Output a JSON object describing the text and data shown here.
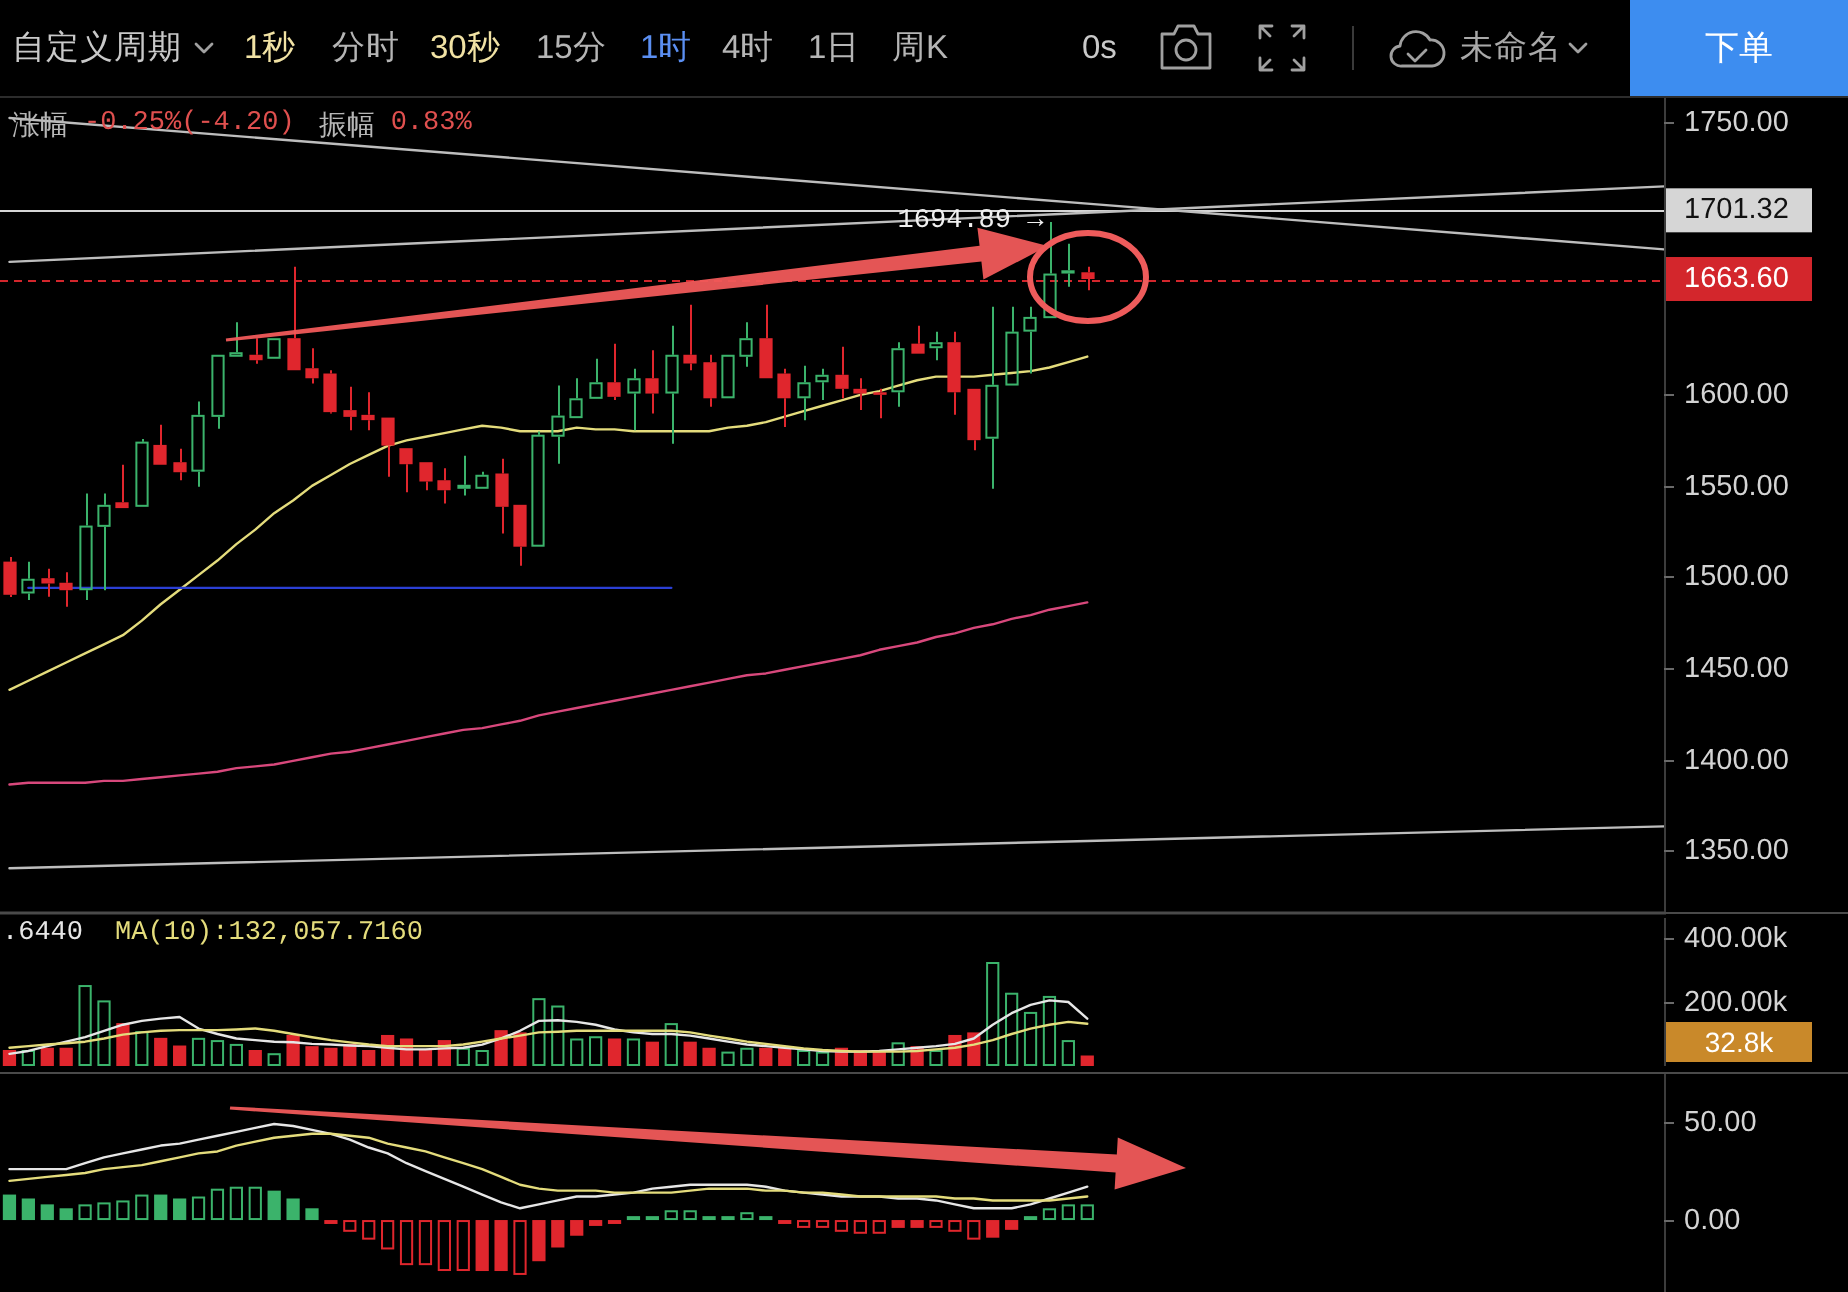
{
  "chart_data": [
    {
      "type": "other",
      "annotations": [
        "自定义周期",
        "1秒",
        "分时",
        "30秒",
        "15分",
        "1时",
        "4时",
        "1日",
        "周K",
        "0s",
        "未命名",
        "下单"
      ]
    },
    {
      "type": "candlestick",
      "categories": [
        null,
        null,
        null,
        null,
        null,
        null,
        null,
        null,
        null,
        null,
        null,
        null,
        null,
        null,
        null,
        null,
        null,
        null,
        null,
        null,
        null,
        null,
        null,
        null,
        null,
        null,
        null,
        null,
        null,
        null,
        null,
        null,
        null,
        null,
        null,
        null,
        null,
        null,
        null,
        null,
        null,
        null,
        null,
        null,
        null,
        null,
        null,
        null,
        null,
        null,
        null,
        null,
        null,
        null,
        null,
        null,
        null,
        null
      ],
      "ohlc": [
        [
          1508.4,
          1511,
          1489,
          1490.2
        ],
        [
          1490.9,
          1508.4,
          1487.3,
          1499
        ],
        [
          1499.3,
          1504.5,
          1489.1,
          1496.4
        ],
        [
          1496.8,
          1502.6,
          1483.6,
          1492.7
        ],
        [
          1492.7,
          1545.8,
          1487.3,
          1528.2
        ],
        [
          1527.5,
          1545.8,
          1492.7,
          1539.6
        ],
        [
          1541,
          1561.6,
          1537.8,
          1537.8
        ],
        [
          1538.5,
          1575.8,
          1538.5,
          1574.3
        ],
        [
          1572.5,
          1583.5,
          1561.6,
          1561.6
        ],
        [
          1563,
          1570.4,
          1553.1,
          1557.5
        ],
        [
          1557.8,
          1596.3,
          1549.5,
          1589
        ],
        [
          1587.9,
          1622,
          1581.4,
          1622
        ],
        [
          1620.9,
          1639.9,
          1620.9,
          1623.4
        ],
        [
          1622,
          1631.1,
          1617.1,
          1619
        ],
        [
          1619.8,
          1631.1,
          1619.8,
          1631.1
        ],
        [
          1631.1,
          1670.3,
          1613.5,
          1613.5
        ],
        [
          1614.6,
          1625.6,
          1606.2,
          1609.1
        ],
        [
          1611.7,
          1613.5,
          1589.7,
          1590.5
        ],
        [
          1591.6,
          1604.4,
          1580.6,
          1587.9
        ],
        [
          1589,
          1601.4,
          1580.6,
          1586.1
        ],
        [
          1587.5,
          1587.5,
          1555,
          1572.1
        ],
        [
          1570.7,
          1570.7,
          1546.5,
          1561.9
        ],
        [
          1563,
          1563,
          1547.6,
          1552.4
        ],
        [
          1553.1,
          1559.7,
          1540.3,
          1547.6
        ],
        [
          1548.4,
          1566.6,
          1544.7,
          1550.6
        ],
        [
          1548.4,
          1557.8,
          1548.4,
          1556.1
        ],
        [
          1556.8,
          1564.9,
          1523.8,
          1538.5
        ],
        [
          1539.6,
          1539.6,
          1506.2,
          1516.6
        ],
        [
          1516.6,
          1579.8,
          1516.6,
          1578.1
        ],
        [
          1577,
          1605.1,
          1562.2,
          1588.6
        ],
        [
          1587.2,
          1609.1,
          1587.2,
          1598.1
        ],
        [
          1597.8,
          1619.8,
          1597.8,
          1606.9
        ],
        [
          1606.9,
          1628.1,
          1597.1,
          1598.9
        ],
        [
          1600.7,
          1614.3,
          1580.6,
          1609.1
        ],
        [
          1609.1,
          1624.5,
          1589.7,
          1600.7
        ],
        [
          1600.7,
          1638,
          1573.2,
          1622
        ],
        [
          1622,
          1649.4,
          1613.5,
          1617.2
        ],
        [
          1617.9,
          1622,
          1593.4,
          1598.1
        ],
        [
          1598.1,
          1622,
          1598.1,
          1622
        ],
        [
          1620.9,
          1639.9,
          1615.4,
          1631.1
        ],
        [
          1631.1,
          1649.4,
          1609.1,
          1609.1
        ],
        [
          1611.7,
          1614.3,
          1582.4,
          1598.1
        ],
        [
          1598.1,
          1616,
          1586.1,
          1606.9
        ],
        [
          1606.9,
          1614.3,
          1597.1,
          1611
        ],
        [
          1611,
          1626.4,
          1598.1,
          1603.3
        ],
        [
          1603.3,
          1609.1,
          1591.6,
          1600.7
        ],
        [
          1601.4,
          1603.3,
          1587.2,
          1600
        ],
        [
          1601.4,
          1628.9,
          1593.4,
          1625.6
        ],
        [
          1628.1,
          1638,
          1622.6,
          1622.6
        ],
        [
          1625.6,
          1634.7,
          1619,
          1628.9
        ],
        [
          1628.9,
          1634.7,
          1589,
          1601.4
        ],
        [
          1603.3,
          1603.3,
          1569.6,
          1575.1
        ],
        [
          1575.9,
          1648.3,
          1548.4,
          1605.5
        ],
        [
          1605.1,
          1648.3,
          1605.1,
          1634.7
        ],
        [
          1634.7,
          1648.3,
          1611.7,
          1642.8
        ],
        [
          1642.1,
          1694.89,
          1642.1,
          1666.6
        ],
        [
          1666.6,
          1683,
          1659.3,
          1668.4
        ],
        [
          1667.3,
          1670.3,
          1657.4,
          1663.6
        ]
      ],
      "colors": [
        "#e0262d",
        "#3bb36b",
        "#e0262d",
        "#e0262d",
        "#3bb36b",
        "#3bb36b",
        "#e0262d",
        "#3bb36b",
        "#e0262d",
        "#e0262d",
        "#3bb36b",
        "#3bb36b",
        "#3bb36b",
        "#e0262d",
        "#3bb36b",
        "#e0262d",
        "#e0262d",
        "#e0262d",
        "#e0262d",
        "#e0262d",
        "#e0262d",
        "#e0262d",
        "#e0262d",
        "#e0262d",
        "#3bb36b",
        "#3bb36b",
        "#e0262d",
        "#e0262d",
        "#3bb36b",
        "#3bb36b",
        "#3bb36b",
        "#3bb36b",
        "#e0262d",
        "#3bb36b",
        "#e0262d",
        "#3bb36b",
        "#e0262d",
        "#e0262d",
        "#3bb36b",
        "#3bb36b",
        "#e0262d",
        "#e0262d",
        "#3bb36b",
        "#3bb36b",
        "#e0262d",
        "#e0262d",
        "#e0262d",
        "#3bb36b",
        "#e0262d",
        "#3bb36b",
        "#e0262d",
        "#e0262d",
        "#3bb36b",
        "#3bb36b",
        "#3bb36b",
        "#3bb36b",
        "#3bb36b",
        "#e0262d"
      ],
      "series": [
        {
          "type": "line",
          "color": "#e4dc7c",
          "values": [
            1438,
            1443,
            1448,
            1453,
            1458,
            1463,
            1468,
            1476,
            1485,
            1493,
            1501,
            1509,
            1518,
            1526,
            1535,
            1542,
            1550,
            1556,
            1562,
            1567,
            1572,
            1575,
            1577,
            1579,
            1581,
            1583,
            1582,
            1580,
            1580,
            1580,
            1582,
            1581,
            1581,
            1580,
            1580,
            1580,
            1580,
            1580,
            1582,
            1583,
            1585,
            1588,
            1591,
            1594,
            1597,
            1600,
            1602,
            1605,
            1608,
            1610,
            1610,
            1610,
            1611,
            1612,
            1613,
            1615,
            1618,
            1621
          ]
        },
        {
          "type": "line",
          "color": "#d8487c",
          "values": [
            1386,
            1387,
            1387,
            1387,
            1387,
            1388,
            1388,
            1389,
            1390,
            1391,
            1392,
            1393,
            1395,
            1396,
            1397,
            1399,
            1401,
            1403,
            1404,
            1406,
            1408,
            1410,
            1412,
            1414,
            1416,
            1417,
            1419,
            1421,
            1424,
            1426,
            1428,
            1430,
            1432,
            1434,
            1436,
            1438,
            1440,
            1442,
            1444,
            1446,
            1447,
            1449,
            1451,
            1453,
            1455,
            1457,
            1460,
            1462,
            1464,
            1467,
            1469,
            1472,
            1474,
            1477,
            1479,
            1482,
            1484,
            1486
          ]
        },
        {
          "type": "line",
          "color": "#bdbdbd",
          "values": [
            1752,
            null,
            null,
            null,
            null,
            null,
            null,
            null,
            null,
            null,
            null,
            null,
            null,
            null,
            null,
            null,
            null,
            null,
            null,
            null,
            null,
            null,
            null,
            null,
            null,
            null,
            null,
            null,
            null,
            null,
            null,
            null,
            null,
            null,
            null,
            null,
            null,
            null,
            null,
            null,
            null,
            null,
            null,
            null,
            null,
            null,
            null,
            null,
            null,
            null,
            null,
            null,
            null,
            null,
            null,
            null,
            null,
            1705
          ]
        },
        {
          "type": "line",
          "color": "#bdbdbd",
          "values": [
            1673,
            null,
            null,
            null,
            null,
            null,
            null,
            null,
            null,
            null,
            null,
            null,
            null,
            null,
            null,
            null,
            null,
            null,
            null,
            null,
            null,
            null,
            null,
            null,
            null,
            null,
            null,
            null,
            null,
            null,
            null,
            null,
            null,
            null,
            null,
            null,
            null,
            null,
            null,
            null,
            null,
            null,
            null,
            null,
            null,
            null,
            null,
            null,
            null,
            null,
            null,
            null,
            null,
            null,
            null,
            null,
            null,
            1700
          ]
        },
        {
          "type": "line",
          "color": "#bdbdbd",
          "values": [
            1340,
            null,
            null,
            null,
            null,
            null,
            null,
            null,
            null,
            null,
            null,
            null,
            null,
            null,
            null,
            null,
            null,
            null,
            null,
            null,
            null,
            null,
            null,
            null,
            null,
            null,
            null,
            null,
            null,
            null,
            null,
            null,
            null,
            null,
            null,
            null,
            null,
            null,
            null,
            null,
            null,
            null,
            null,
            null,
            null,
            null,
            null,
            null,
            null,
            null,
            null,
            null,
            null,
            null,
            null,
            null,
            null,
            1355
          ]
        },
        {
          "type": "line",
          "color": "#2b3fd4",
          "values": [
            null,
            1494,
            null,
            null,
            null,
            null,
            null,
            null,
            null,
            null,
            null,
            null,
            null,
            null,
            null,
            null,
            null,
            null,
            null,
            null,
            null,
            null,
            null,
            null,
            null,
            null,
            null,
            null,
            null,
            null,
            null,
            null,
            null,
            null,
            null,
            1494,
            null,
            null,
            null,
            null,
            null,
            null,
            null,
            null,
            null,
            null,
            null,
            null,
            null,
            null,
            null,
            null,
            null,
            null,
            null,
            null,
            null,
            null
          ]
        }
      ],
      "ylim": [
        1316,
        1763
      ],
      "yticks": [
        {
          "value": 1350,
          "label": "1350.00"
        },
        {
          "value": 1400,
          "label": "1400.00"
        },
        {
          "value": 1450,
          "label": "1450.00"
        },
        {
          "value": 1500,
          "label": "1500.00"
        },
        {
          "value": 1550,
          "label": "1550.00"
        },
        {
          "value": 1600,
          "label": "1600.00"
        },
        {
          "value": 1750,
          "label": "1750.00"
        }
      ],
      "ref_lines": [
        {
          "axis": "y",
          "value": 1701.32,
          "label": "1701.32",
          "color": "#d6d6d6"
        },
        {
          "axis": "y",
          "value": 1663.6,
          "label": "1663.60",
          "color": "#d3262c",
          "line_style": "dashed"
        }
      ],
      "annotations": [
        "涨幅",
        "-0.25%(-4.20)",
        "振幅",
        "0.83%",
        {
          "text": "1694.89 →",
          "y": 1694.89
        }
      ],
      "tick_labels": "y"
    },
    {
      "type": "bar",
      "categories": [
        null,
        null,
        null,
        null,
        null,
        null,
        null,
        null,
        null,
        null,
        null,
        null,
        null,
        null,
        null,
        null,
        null,
        null,
        null,
        null,
        null,
        null,
        null,
        null,
        null,
        null,
        null,
        null,
        null,
        null,
        null,
        null,
        null,
        null,
        null,
        null,
        null,
        null,
        null,
        null,
        null,
        null,
        null,
        null,
        null,
        null,
        null,
        null,
        null,
        null,
        null,
        null,
        null,
        null,
        null,
        null,
        null,
        null
      ],
      "series": [
        {
          "color": "#3bb36b",
          "values": [
            null,
            50000,
            null,
            null,
            253000,
            205000,
            null,
            109000,
            null,
            null,
            88000,
            81000,
            69000,
            null,
            40000,
            null,
            null,
            null,
            null,
            null,
            null,
            null,
            null,
            null,
            57000,
            50000,
            null,
            null,
            212000,
            189000,
            86000,
            93000,
            null,
            86000,
            null,
            134000,
            null,
            null,
            45000,
            57000,
            null,
            null,
            50000,
            45000,
            null,
            null,
            null,
            74000,
            null,
            50000,
            null,
            null,
            325000,
            229000,
            169000,
            219000,
            81000,
            null
          ]
        },
        {
          "color": "#e0262d",
          "values": [
            50000,
            null,
            57000,
            57000,
            null,
            null,
            134000,
            null,
            88000,
            64000,
            null,
            null,
            null,
            50000,
            null,
            97000,
            62000,
            57000,
            69000,
            50000,
            97000,
            86000,
            50000,
            81000,
            null,
            null,
            112000,
            105000,
            null,
            null,
            null,
            null,
            86000,
            null,
            76000,
            null,
            76000,
            57000,
            null,
            null,
            57000,
            62000,
            null,
            null,
            57000,
            50000,
            45000,
            null,
            62000,
            null,
            97000,
            105000,
            null,
            null,
            null,
            null,
            null,
            32800
          ]
        },
        {
          "type": "line",
          "name": ".6440",
          "color": "#e6e6e6",
          "values": [
            38000,
            47000,
            62000,
            76000,
            90000,
            110000,
            129000,
            141000,
            148000,
            153000,
            117000,
            100000,
            86000,
            81000,
            76000,
            74000,
            69000,
            67000,
            64000,
            62000,
            57000,
            52000,
            52000,
            55000,
            57000,
            67000,
            86000,
            110000,
            141000,
            143000,
            138000,
            129000,
            114000,
            105000,
            100000,
            100000,
            95000,
            86000,
            76000,
            67000,
            62000,
            57000,
            52000,
            47000,
            45000,
            45000,
            47000,
            52000,
            57000,
            62000,
            69000,
            86000,
            129000,
            165000,
            191000,
            205000,
            200000,
            148000
          ]
        },
        {
          "type": "line",
          "name": "MA(10):132,057.7160",
          "color": "#e4dc7c",
          "values": [
            57000,
            62000,
            67000,
            71000,
            76000,
            86000,
            98000,
            105000,
            110000,
            112000,
            112000,
            112000,
            114000,
            117000,
            110000,
            100000,
            90000,
            81000,
            74000,
            67000,
            62000,
            62000,
            62000,
            62000,
            67000,
            76000,
            86000,
            95000,
            105000,
            107000,
            110000,
            110000,
            110000,
            110000,
            110000,
            110000,
            105000,
            95000,
            86000,
            76000,
            69000,
            62000,
            55000,
            50000,
            47000,
            45000,
            45000,
            45000,
            47000,
            52000,
            57000,
            67000,
            81000,
            100000,
            117000,
            129000,
            138000,
            132000
          ]
        }
      ],
      "ylim": [
        0,
        475000
      ],
      "yticks": [
        {
          "value": 200000,
          "label": "200.00k"
        },
        {
          "value": 400000,
          "label": "400.00k"
        }
      ],
      "annotations": [
        "32.8k"
      ],
      "legend": "top left",
      "tick_labels": "y"
    },
    {
      "type": "bar",
      "categories": [
        null,
        null,
        null,
        null,
        null,
        null,
        null,
        null,
        null,
        null,
        null,
        null,
        null,
        null,
        null,
        null,
        null,
        null,
        null,
        null,
        null,
        null,
        null,
        null,
        null,
        null,
        null,
        null,
        null,
        null,
        null,
        null,
        null,
        null,
        null,
        null,
        null,
        null,
        null,
        null,
        null,
        null,
        null,
        null,
        null,
        null,
        null,
        null,
        null,
        null,
        null,
        null,
        null,
        null,
        null,
        null,
        null,
        null
      ],
      "series": [
        {
          "color": "#3bb36b",
          "values": [
            13,
            11,
            8,
            6,
            null,
            null,
            null,
            null,
            13,
            11,
            null,
            null,
            null,
            null,
            15,
            11,
            6,
            null,
            null,
            null,
            null,
            null,
            null,
            null,
            null,
            null,
            null,
            null,
            null,
            null,
            null,
            null,
            null,
            2,
            2,
            null,
            null,
            2,
            2,
            null,
            2,
            null,
            null,
            null,
            null,
            null,
            null,
            null,
            null,
            null,
            null,
            null,
            null,
            null,
            2,
            null,
            null,
            null
          ]
        },
        {
          "color": "#3bb36b",
          "values": [
            null,
            null,
            null,
            null,
            8,
            9,
            10,
            13,
            null,
            null,
            12,
            16,
            17,
            17,
            null,
            null,
            null,
            null,
            null,
            null,
            null,
            null,
            null,
            null,
            null,
            null,
            null,
            null,
            null,
            null,
            null,
            null,
            null,
            null,
            null,
            5,
            5,
            null,
            null,
            4,
            null,
            null,
            null,
            null,
            null,
            null,
            null,
            null,
            null,
            null,
            null,
            null,
            null,
            null,
            null,
            6,
            8,
            8
          ]
        },
        {
          "color": "#e0262d",
          "values": [
            null,
            null,
            null,
            null,
            null,
            null,
            null,
            null,
            null,
            null,
            null,
            null,
            null,
            null,
            null,
            null,
            null,
            null,
            -6,
            -10,
            -15,
            -23,
            -23,
            -26,
            -26,
            null,
            null,
            -28,
            null,
            null,
            null,
            null,
            null,
            null,
            null,
            null,
            null,
            null,
            null,
            null,
            null,
            null,
            -4,
            -4,
            -6,
            -7,
            -7,
            null,
            null,
            -4,
            -6,
            -10,
            null,
            null,
            null,
            null,
            null,
            null
          ]
        },
        {
          "color": "#e0262d",
          "values": [
            null,
            null,
            null,
            null,
            null,
            null,
            null,
            null,
            null,
            null,
            null,
            null,
            null,
            null,
            null,
            null,
            null,
            -2,
            null,
            null,
            null,
            null,
            null,
            null,
            null,
            -26,
            -26,
            null,
            -21,
            -14,
            -8,
            -3,
            -2,
            null,
            null,
            null,
            null,
            null,
            null,
            null,
            null,
            -2,
            null,
            null,
            null,
            null,
            null,
            -4,
            -4,
            null,
            null,
            null,
            -9,
            -5,
            null,
            null,
            null,
            null
          ]
        },
        {
          "type": "line",
          "color": "#e6e6e6",
          "values": [
            26,
            26,
            26,
            26,
            29,
            32,
            34,
            36,
            38,
            39,
            41,
            43,
            45,
            47,
            49,
            48,
            46,
            44,
            41,
            37,
            34,
            29,
            25,
            21,
            17,
            13,
            9,
            6,
            8,
            10,
            12,
            12,
            13,
            14,
            16,
            17,
            18,
            18,
            18,
            18,
            17,
            15,
            14,
            13,
            12,
            12,
            12,
            11,
            11,
            10,
            8,
            6,
            6,
            6,
            8,
            11,
            14,
            17
          ]
        },
        {
          "type": "line",
          "color": "#e4dc7c",
          "values": [
            20,
            21,
            22,
            23,
            24,
            26,
            27,
            28,
            30,
            32,
            34,
            35,
            38,
            40,
            42,
            43,
            44,
            44,
            43,
            42,
            39,
            37,
            35,
            32,
            29,
            26,
            22,
            18,
            16,
            15,
            15,
            15,
            14,
            14,
            14,
            14,
            15,
            16,
            16,
            16,
            15,
            15,
            14,
            14,
            13,
            12,
            12,
            12,
            12,
            12,
            11,
            11,
            10,
            10,
            10,
            10,
            11,
            12
          ]
        }
      ],
      "ylim": [
        -36.7,
        74.5
      ],
      "yticks": [
        {
          "value": 0,
          "label": "0.00"
        },
        {
          "value": 50,
          "label": "50.00"
        }
      ],
      "tick_labels": "y"
    }
  ]
}
